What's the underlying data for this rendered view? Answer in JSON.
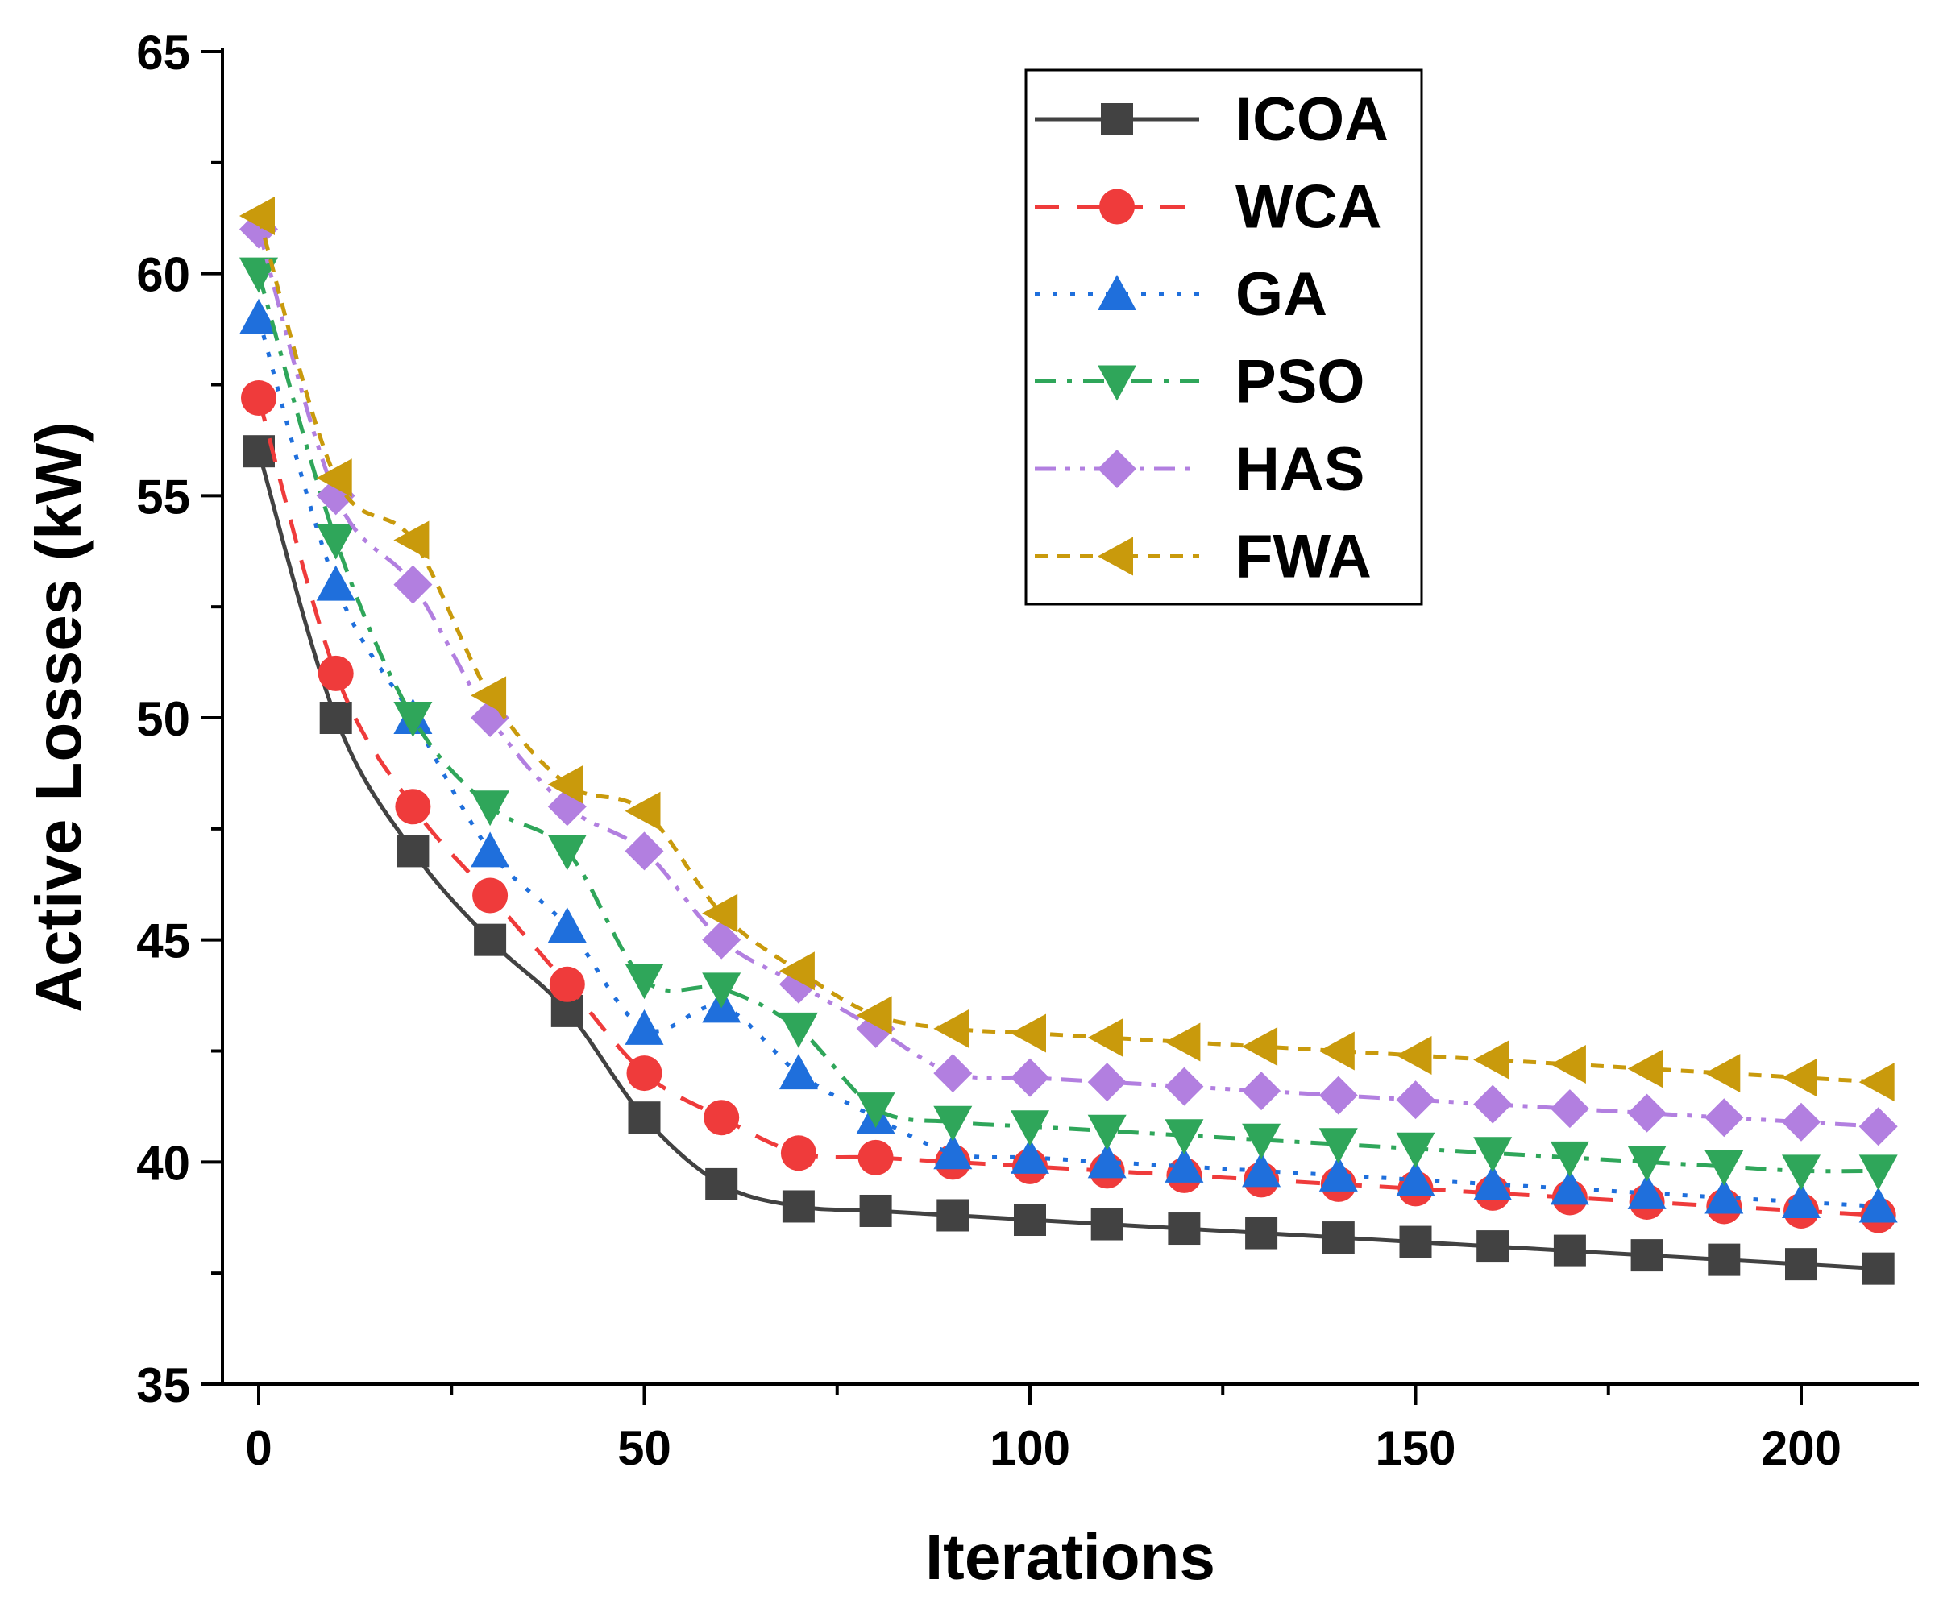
{
  "chart_data": {
    "type": "line",
    "xlabel": "Iterations",
    "ylabel": "Active Losses (kW)",
    "xlim": [
      -5,
      215
    ],
    "ylim": [
      35,
      65
    ],
    "xticks": [
      0,
      50,
      100,
      150,
      200
    ],
    "yticks": [
      35,
      40,
      45,
      50,
      55,
      60,
      65
    ],
    "xtick_labels": [
      "0",
      "50",
      "100",
      "150",
      "200"
    ],
    "ytick_labels": [
      "35",
      "40",
      "45",
      "50",
      "55",
      "60",
      "65"
    ],
    "grid": false,
    "legend_position": "top-right",
    "x": [
      0,
      10,
      20,
      30,
      40,
      50,
      60,
      70,
      80,
      90,
      100,
      110,
      120,
      130,
      140,
      150,
      160,
      170,
      180,
      190,
      200,
      210
    ],
    "series": [
      {
        "name": "ICOA",
        "color": "#424242",
        "marker": "square",
        "dash": "solid",
        "values": [
          56,
          50,
          47,
          45,
          43.4,
          41,
          39.5,
          39.0,
          38.9,
          38.8,
          38.7,
          38.6,
          38.5,
          38.4,
          38.3,
          38.2,
          38.1,
          38.0,
          37.9,
          37.8,
          37.7,
          37.6
        ]
      },
      {
        "name": "WCA",
        "color": "#ef3b3b",
        "marker": "circle",
        "dash": "dash",
        "values": [
          57.2,
          51,
          48,
          46,
          44,
          42,
          41,
          40.2,
          40.1,
          40.0,
          39.9,
          39.8,
          39.7,
          39.6,
          39.5,
          39.4,
          39.3,
          39.2,
          39.1,
          39.0,
          38.9,
          38.8
        ]
      },
      {
        "name": "GA",
        "color": "#1f6fdc",
        "marker": "triangle-up",
        "dash": "dot",
        "values": [
          59,
          53,
          50,
          47,
          45.3,
          43,
          43.5,
          42,
          41,
          40.2,
          40.1,
          40.0,
          39.9,
          39.8,
          39.7,
          39.6,
          39.5,
          39.4,
          39.3,
          39.2,
          39.1,
          39.0
        ]
      },
      {
        "name": "PSO",
        "color": "#2fa65a",
        "marker": "triangle-down",
        "dash": "dashdot",
        "values": [
          60,
          54,
          50,
          48,
          47,
          44.1,
          43.9,
          43,
          41.2,
          40.9,
          40.8,
          40.7,
          40.6,
          40.5,
          40.4,
          40.3,
          40.2,
          40.1,
          40.0,
          39.9,
          39.8,
          39.8
        ]
      },
      {
        "name": " HAS",
        "color": "#b27fe0",
        "marker": "diamond",
        "dash": "dashdotdot",
        "values": [
          61,
          55,
          53,
          50,
          48,
          47,
          45,
          44,
          43,
          42,
          41.9,
          41.8,
          41.7,
          41.6,
          41.5,
          41.4,
          41.3,
          41.2,
          41.1,
          41.0,
          40.9,
          40.8
        ]
      },
      {
        "name": "FWA",
        "color": "#c99a0c",
        "marker": "triangle-left",
        "dash": "shortdash",
        "values": [
          61.3,
          55.4,
          54,
          50.5,
          48.5,
          47.9,
          45.6,
          44.3,
          43.3,
          43.0,
          42.9,
          42.8,
          42.7,
          42.6,
          42.5,
          42.4,
          42.3,
          42.2,
          42.1,
          42.0,
          41.9,
          41.8
        ]
      }
    ]
  }
}
